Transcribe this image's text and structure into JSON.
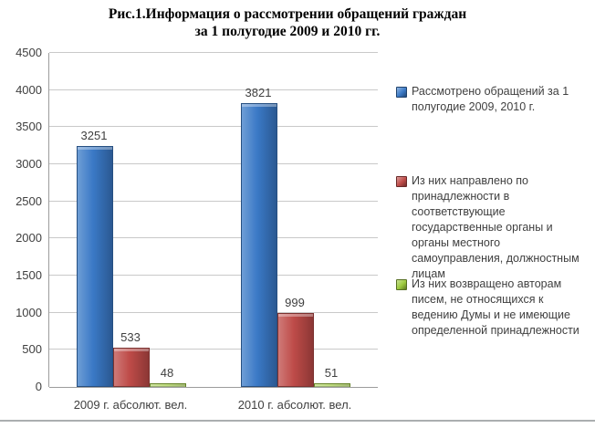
{
  "title": {
    "line1": "Рис.1.Информация о рассмотрении обращений граждан",
    "line2": "за 1 полугодие 2009 и 2010 гг."
  },
  "chart_data": {
    "type": "bar",
    "categories": [
      "2009 г. абсолют. вел.",
      "2010 г. абсолют. вел."
    ],
    "series": [
      {
        "name": "Рассмотрено обращений за 1 полугодие 2009, 2010 г.",
        "values": [
          3251,
          3821
        ],
        "color": "#3a79c6"
      },
      {
        "name": "Из них направлено по принадлежности в соответствующие государственные органы и органы местного самоуправления, должностным лицам",
        "values": [
          533,
          999
        ],
        "color": "#be4b48"
      },
      {
        "name": "Из них возвращено авторам писем, не относящихся к ведению Думы и не имеющие определенной принадлежности",
        "values": [
          48,
          51
        ],
        "color": "#9cc93c"
      }
    ],
    "ylim": [
      0,
      4500
    ],
    "ytick_step": 500,
    "grid": true,
    "data_labels": true,
    "legend_position": "right"
  },
  "legend": {
    "items": [
      {
        "text": "Рассмотрено обращений за 1\nполугодие 2009, 2010 г.",
        "color": "#3a79c6"
      },
      {
        "text": "Из них направлено по\nпринадлежности в\nсоответствующие\nгосударственные органы и\nорганы местного\nсамоуправления, должностным\nлицам",
        "color": "#be4b48"
      },
      {
        "text": "Из них возвращено авторам\nписем, не относящихся к\nведению Думы и не имеющие\nопределенной принадлежности",
        "color": "#9cc93c"
      }
    ]
  }
}
